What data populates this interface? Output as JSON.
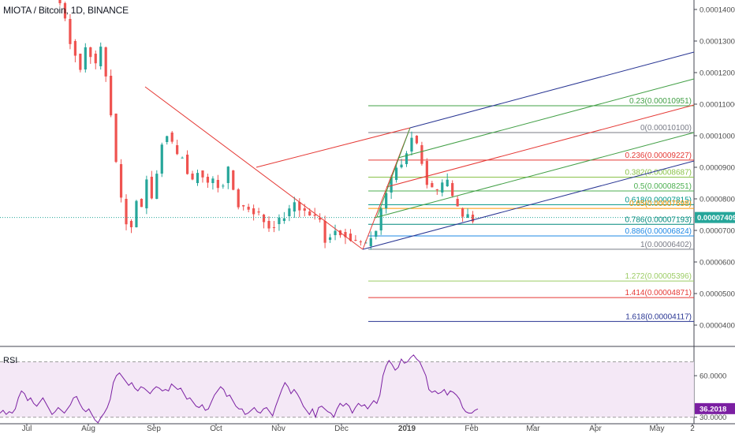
{
  "header": {
    "title": "MIOTA / Bitcoin, 1D, BINANCE"
  },
  "rsi_panel": {
    "label": "RSI",
    "current_value_label": "36.2018",
    "badge_color": "#7b1fa2"
  },
  "price_badge": {
    "label": "0.00007409",
    "color": "#26a69a"
  },
  "chart_data": [
    {
      "type": "candlestick",
      "title": "MIOTA / Bitcoin, 1D, BINANCE",
      "x_labels": [
        "Jul",
        "Aug",
        "Sep",
        "Oct",
        "Nov",
        "Dec",
        "2019",
        "Feb",
        "Mar",
        "Apr",
        "May",
        "2"
      ],
      "y_tick_labels": [
        "0.00014000",
        "0.00013000",
        "0.00012000",
        "0.00011000",
        "0.00010000",
        "0.00009000",
        "0.00008000",
        "0.00007000",
        "0.00006000",
        "0.00005000",
        "0.00004000"
      ],
      "ylim": [
        3.55e-05,
        0.0001415
      ],
      "last_price": 7.409e-05,
      "price_path": [
        [
          0,
          0.000147
        ],
        [
          2,
          0.000137
        ],
        [
          3,
          0.00013
        ],
        [
          4,
          0.000126
        ],
        [
          5,
          0.000121
        ],
        [
          6,
          0.000128
        ],
        [
          7,
          0.000126
        ],
        [
          8,
          0.000122
        ],
        [
          9,
          0.000128
        ],
        [
          10,
          0.000119
        ],
        [
          11,
          0.000107
        ],
        [
          12,
          9.1e-05
        ],
        [
          13,
          8e-05
        ],
        [
          14,
          7.3e-05
        ],
        [
          15,
          7.1e-05
        ],
        [
          16,
          8e-05
        ],
        [
          17,
          7.7e-05
        ],
        [
          18,
          8.7e-05
        ],
        [
          19,
          8e-05
        ],
        [
          20,
          8.8e-05
        ],
        [
          21,
          9.8e-05
        ],
        [
          22,
          0.000101
        ],
        [
          23,
          9.7e-05
        ],
        [
          24,
          9.3e-05
        ],
        [
          25,
          9.4e-05
        ],
        [
          26,
          8.8e-05
        ],
        [
          27,
          8.5e-05
        ],
        [
          28,
          8.9e-05
        ],
        [
          29,
          8.7e-05
        ],
        [
          30,
          8.5e-05
        ],
        [
          31,
          8.6e-05
        ],
        [
          32,
          8.4e-05
        ],
        [
          33,
          8.5e-05
        ],
        [
          34,
          8.9e-05
        ],
        [
          35,
          8.3e-05
        ],
        [
          36,
          7.8e-05
        ],
        [
          38,
          7.7e-05
        ],
        [
          40,
          7.5e-05
        ],
        [
          42,
          7.1e-05
        ],
        [
          44,
          7.3e-05
        ],
        [
          46,
          7.6e-05
        ],
        [
          47,
          7.9e-05
        ],
        [
          48,
          7.7e-05
        ],
        [
          50,
          7.5e-05
        ],
        [
          52,
          7.3e-05
        ],
        [
          53,
          6.7e-05
        ],
        [
          55,
          7e-05
        ],
        [
          57,
          6.9e-05
        ],
        [
          58,
          6.7e-05
        ],
        [
          60,
          6.6e-05
        ],
        [
          61,
          6.5e-05
        ],
        [
          62,
          6.8e-05
        ],
        [
          63,
          7e-05
        ],
        [
          64,
          7.7e-05
        ],
        [
          65,
          8.2e-05
        ],
        [
          66,
          8.6e-05
        ],
        [
          67,
          9e-05
        ],
        [
          68,
          9.1e-05
        ],
        [
          69,
          9.5e-05
        ],
        [
          70,
          0.0001
        ],
        [
          71,
          9.7e-05
        ],
        [
          72,
          9.2e-05
        ],
        [
          73,
          8.5e-05
        ],
        [
          74,
          8.3e-05
        ],
        [
          75,
          8.2e-05
        ],
        [
          76,
          8.4e-05
        ],
        [
          77,
          8.5e-05
        ],
        [
          78,
          8e-05
        ],
        [
          79,
          7.7e-05
        ],
        [
          80,
          7.4e-05
        ],
        [
          81,
          7.5e-05
        ],
        [
          82,
          7.4e-05
        ]
      ],
      "fibonacci_levels": [
        {
          "ratio": "0.236",
          "label": "0.236(0.00009227)",
          "price": 9.227e-05,
          "color": "#e53935"
        },
        {
          "ratio": "0",
          "label": "0(0.00010100)",
          "price": 0.000101,
          "color": "#787b86"
        },
        {
          "ratio": "0.23",
          "label": "0.23(0.00010951)",
          "price": 0.00010951,
          "color": "#43a047"
        },
        {
          "ratio": "0.382",
          "label": "0.382(0.00008687)",
          "price": 8.687e-05,
          "color": "#8bc34a"
        },
        {
          "ratio": "0.5",
          "label": "0.5(0.00008251)",
          "price": 8.251e-05,
          "color": "#4caf50"
        },
        {
          "ratio": "0.618",
          "label": "0.618(0.00007815)",
          "price": 7.815e-05,
          "color": "#009688"
        },
        {
          "ratio": "0.65",
          "label": "0.65(0.00007698)",
          "price": 7.698e-05,
          "color": "#ff9800"
        },
        {
          "ratio": "0.786",
          "label": "0.786(0.00007193)",
          "price": 7.193e-05,
          "color": "#00897b"
        },
        {
          "ratio": "0.886",
          "label": "0.886(0.00006824)",
          "price": 6.824e-05,
          "color": "#1e88e5"
        },
        {
          "ratio": "1",
          "label": "1(0.00006402)",
          "price": 6.402e-05,
          "color": "#787b86"
        },
        {
          "ratio": "1.272",
          "label": "1.272(0.00005396)",
          "price": 5.396e-05,
          "color": "#9ccc65"
        },
        {
          "ratio": "1.414",
          "label": "1.414(0.00004871)",
          "price": 4.871e-05,
          "color": "#e53935"
        },
        {
          "ratio": "1.618",
          "label": "1.618(0.00004117)",
          "price": 4.117e-05,
          "color": "#283593"
        }
      ],
      "trend_lines": [
        {
          "color": "#e53935",
          "points": [
            [
              9.3e-05,
              0.000113
            ],
            [
              9.52e-05,
              8.7e-05
            ],
            [
              9.78e-05,
              6.4e-05
            ]
          ]
        }
      ]
    },
    {
      "type": "line",
      "title": "RSI",
      "y_tick_labels": [
        "60.0000",
        "30.0000"
      ],
      "ylim": [
        27,
        80
      ],
      "band": [
        30,
        70
      ],
      "last_value": 36.2018,
      "values": [
        33,
        35,
        32,
        34,
        33,
        36,
        44,
        49,
        47,
        42,
        44,
        40,
        38,
        41,
        44,
        40,
        36,
        32,
        34,
        37,
        35,
        33,
        36,
        39,
        44,
        45,
        40,
        36,
        34,
        36,
        32,
        28,
        26,
        30,
        33,
        37,
        43,
        55,
        60,
        62,
        59,
        56,
        53,
        55,
        51,
        49,
        52,
        51,
        49,
        47,
        50,
        52,
        51,
        49,
        50,
        49,
        54,
        52,
        50,
        51,
        47,
        43,
        44,
        41,
        38,
        37,
        39,
        35,
        36,
        41,
        46,
        49,
        52,
        50,
        45,
        46,
        42,
        38,
        36,
        36,
        32,
        33,
        35,
        37,
        34,
        33,
        36,
        37,
        34,
        31,
        38,
        44,
        50,
        55,
        52,
        47,
        50,
        47,
        43,
        38,
        35,
        32,
        36,
        30,
        37,
        38,
        36,
        34,
        33,
        30,
        36,
        40,
        38,
        40,
        38,
        33,
        37,
        40,
        38,
        39,
        36,
        39,
        42,
        40,
        46,
        60,
        67,
        71,
        68,
        64,
        66,
        72,
        69,
        70,
        73,
        75,
        72,
        70,
        65,
        60,
        50,
        48,
        49,
        47,
        48,
        50,
        46,
        49,
        48,
        46,
        43,
        37,
        34,
        33,
        33,
        35,
        36
      ]
    }
  ]
}
